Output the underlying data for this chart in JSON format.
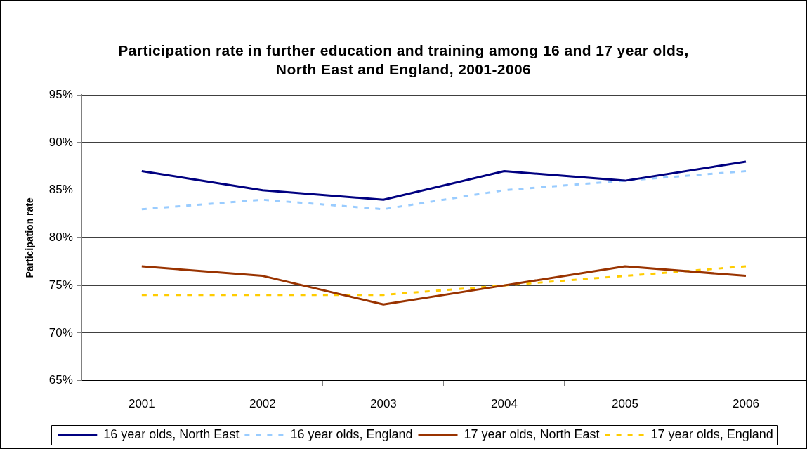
{
  "chart_data": {
    "type": "line",
    "title": "Participation rate in further education and training among 16 and 17 year olds, North East and England, 2001-2006",
    "ylabel": "Participation rate",
    "categories": [
      "2001",
      "2002",
      "2003",
      "2004",
      "2005",
      "2006"
    ],
    "series": [
      {
        "name": "16 year olds, North East",
        "color": "#000080",
        "line_style": "solid",
        "values": [
          87,
          85,
          84,
          87,
          86,
          88
        ]
      },
      {
        "name": "16 year olds, England",
        "color": "#99ccff",
        "line_style": "dashed",
        "values": [
          83,
          84,
          83,
          85,
          86,
          87
        ]
      },
      {
        "name": "17 year olds, North East",
        "color": "#993300",
        "line_style": "solid",
        "values": [
          77,
          76,
          73,
          75,
          77,
          76
        ]
      },
      {
        "name": "17 year olds, England",
        "color": "#ffcc00",
        "line_style": "dashed",
        "values": [
          74,
          74,
          74,
          75,
          76,
          77
        ]
      }
    ],
    "ylim": [
      65,
      95
    ],
    "yticks": [
      {
        "value": 65,
        "label": "65%"
      },
      {
        "value": 70,
        "label": "70%"
      },
      {
        "value": 75,
        "label": "75%"
      },
      {
        "value": 80,
        "label": "80%"
      },
      {
        "value": 85,
        "label": "85%"
      },
      {
        "value": 90,
        "label": "90%"
      },
      {
        "value": 95,
        "label": "95%"
      }
    ],
    "grid": "y",
    "legend": "bottom",
    "marker": "none"
  }
}
